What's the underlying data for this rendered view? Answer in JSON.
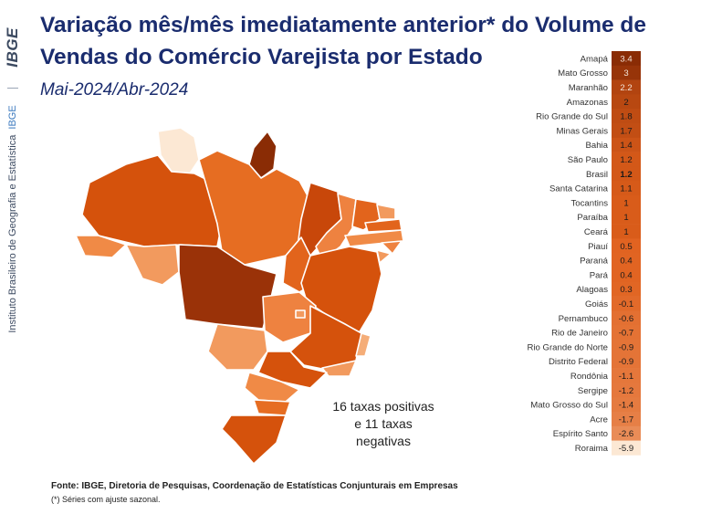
{
  "branding": {
    "logo_text": "IBGE",
    "institute": "Instituto Brasileiro de Geografia e Estatística",
    "institute_abbr": "IBGE"
  },
  "title_line1": "Variação mês/mês imediatamente anterior* do Volume de",
  "title_line2": "Vendas do Comércio Varejista por Estado",
  "subtitle": "Mai-2024/Abr-2024",
  "note_lines": [
    "16 taxas positivas",
    "e 11 taxas",
    "negativas"
  ],
  "source": "Fonte: IBGE, Diretoria de Pesquisas, Coordenação de Estatísticas Conjunturais em Empresas",
  "footnote": "(*) Séries com ajuste sazonal.",
  "colors": {
    "title": "#1a2c6e",
    "scale_high": "#8a2c05",
    "scale_mid": "#e0601c",
    "scale_low": "#fce8d4"
  },
  "chart_data": {
    "type": "table",
    "categories": [
      "Amapá",
      "Mato Grosso",
      "Maranhão",
      "Amazonas",
      "Rio Grande do Sul",
      "Minas Gerais",
      "Bahia",
      "São Paulo",
      "Brasil",
      "Santa Catarina",
      "Tocantins",
      "Paraíba",
      "Ceará",
      "Piauí",
      "Paraná",
      "Pará",
      "Alagoas",
      "Goiás",
      "Pernambuco",
      "Rio de Janeiro",
      "Rio Grande do Norte",
      "Distrito Federal",
      "Rondônia",
      "Sergipe",
      "Mato Grosso do Sul",
      "Acre",
      "Espírito Santo",
      "Roraima"
    ],
    "values": [
      3.4,
      3,
      2.2,
      2,
      1.8,
      1.7,
      1.4,
      1.2,
      1.2,
      1.1,
      1,
      1,
      1,
      0.5,
      0.4,
      0.4,
      0.3,
      -0.1,
      -0.6,
      -0.7,
      -0.9,
      -0.9,
      -1.1,
      -1.2,
      -1.4,
      -1.7,
      -2.6,
      -5.9
    ],
    "value_labels": [
      "3.4",
      "3",
      "2.2",
      "2",
      "1.8",
      "1.7",
      "1.4",
      "1.2",
      "1.2",
      "1.1",
      "1",
      "1",
      "1",
      "0.5",
      "0.4",
      "0.4",
      "0.3",
      "-0.1",
      "-0.6",
      "-0.7",
      "-0.9",
      "-0.9",
      "-1.1",
      "-1.2",
      "-1.4",
      "-1.7",
      "-2.6",
      "-5.9"
    ],
    "highlight": "Brasil",
    "map_type": "choropleth"
  }
}
